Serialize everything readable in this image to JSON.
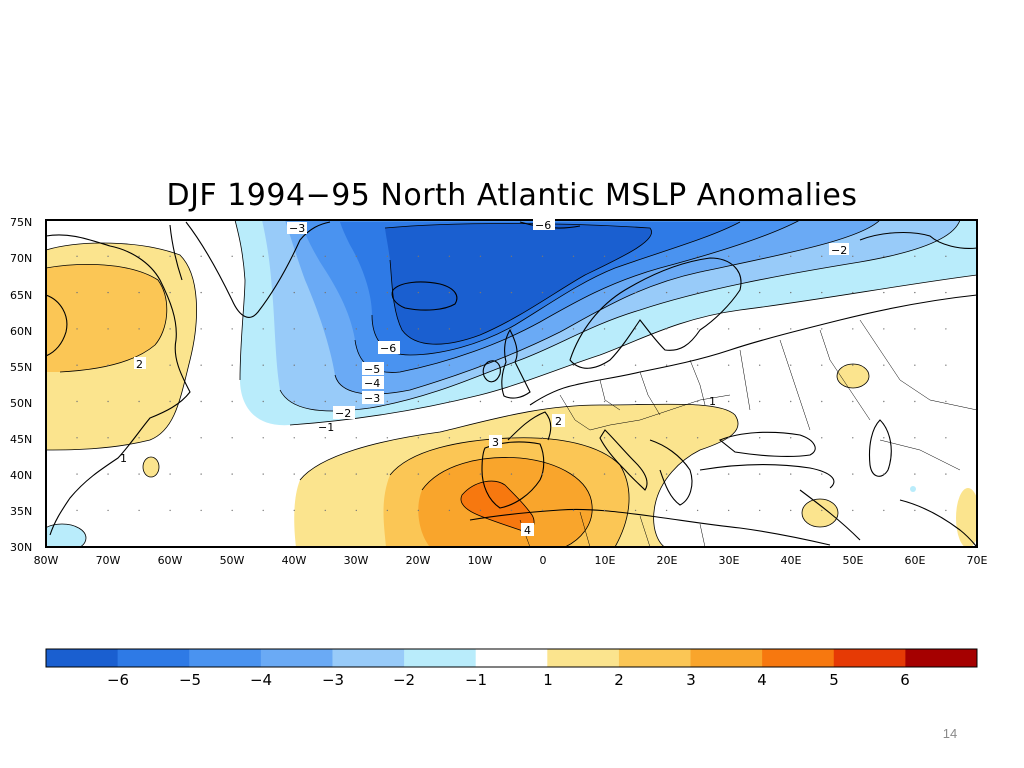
{
  "title": "DJF 1994−95 North Atlantic MSLP Anomalies",
  "map": {
    "lat_ticks": [
      "75N",
      "70N",
      "65N",
      "60N",
      "55N",
      "50N",
      "45N",
      "40N",
      "35N",
      "30N"
    ],
    "lon_ticks": [
      "80W",
      "70W",
      "60W",
      "50W",
      "40W",
      "30W",
      "20W",
      "10W",
      "0",
      "10E",
      "20E",
      "30E",
      "40E",
      "50E",
      "60E",
      "70E"
    ],
    "contour_labels": {
      "neg3_top": "−3",
      "neg6_top": "−6",
      "neg2_ne": "−2",
      "pos2_canada": "2",
      "neg6_mid": "−6",
      "neg5": "−5",
      "neg4": "−4",
      "neg3": "−3",
      "neg2": "−2",
      "neg1": "−1",
      "pos1_east": "1",
      "pos2_med": "2",
      "pos3": "3",
      "pos4": "4",
      "pos1_west": "1"
    }
  },
  "colorbar": {
    "colors": [
      "#1a5fd0",
      "#2e7ae6",
      "#4a93f0",
      "#6aaaf5",
      "#98cbf9",
      "#b9ecfb",
      "#ffffff",
      "#fbe48e",
      "#fbc655",
      "#f9a52c",
      "#f7780f",
      "#e63a05",
      "#a50000"
    ],
    "labels": [
      "−6",
      "−5",
      "−4",
      "−3",
      "−2",
      "−1",
      "1",
      "2",
      "3",
      "4",
      "5",
      "6"
    ]
  },
  "page_number": "14"
}
